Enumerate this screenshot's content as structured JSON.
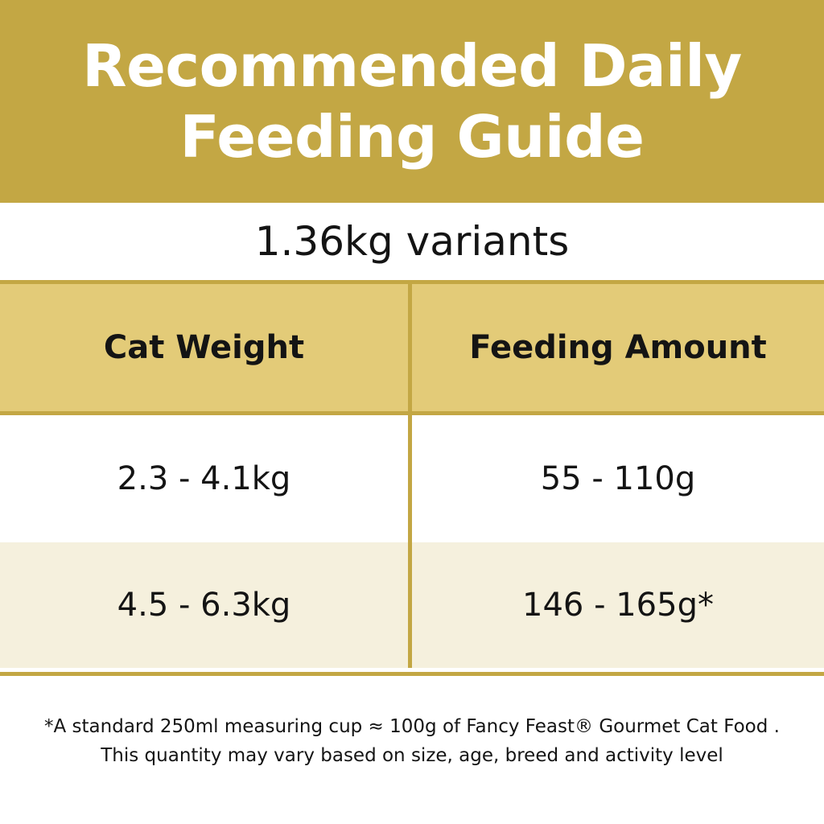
{
  "banner": {
    "title_line1": "Recommended Daily",
    "title_line2": "Feeding Guide"
  },
  "subtitle": "1.36kg variants",
  "table": {
    "headers": [
      "Cat Weight",
      "Feeding Amount"
    ],
    "rows": [
      [
        "2.3 - 4.1kg",
        "55 - 110g"
      ],
      [
        "4.5 - 6.3kg",
        "146 - 165g*"
      ]
    ]
  },
  "footnote": {
    "line1": "*A standard 250ml measuring cup ≈ 100g of Fancy Feast® Gourmet Cat Food .",
    "line2": "This quantity may vary based on size, age, breed and activity level"
  },
  "colors": {
    "gold": "#c3a744",
    "header_gold": "#e3cb78",
    "cream": "#f5f0dd",
    "text": "#141414"
  }
}
